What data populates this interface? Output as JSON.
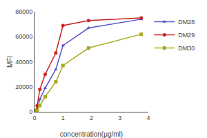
{
  "chart_data": {
    "type": "line",
    "xlabel": "concentration(μg/ml)",
    "ylabel": "MFI",
    "x": [
      0.0,
      0.047,
      0.094,
      0.188,
      0.375,
      0.75,
      1.0,
      1.9,
      3.75
    ],
    "series": [
      {
        "name": "DM28",
        "color": "#5555cc",
        "marker": "triangle",
        "values": [
          0,
          500,
          2000,
          10000,
          19000,
          34000,
          53000,
          67000,
          74000
        ]
      },
      {
        "name": "DM29",
        "color": "#cc2222",
        "marker": "circle",
        "values": [
          0,
          1000,
          5000,
          18000,
          30000,
          47000,
          69000,
          73000,
          75000
        ]
      },
      {
        "name": "DM30",
        "color": "#aaaa22",
        "marker": "square",
        "values": [
          0,
          300,
          1000,
          5000,
          12000,
          24000,
          37000,
          51000,
          62000
        ]
      }
    ],
    "xlim": [
      0,
      4.0
    ],
    "ylim": [
      0,
      80000
    ],
    "xticks": [
      0,
      1,
      2,
      3,
      4
    ],
    "yticks": [
      0,
      20000,
      40000,
      60000,
      80000
    ],
    "grid": false,
    "legend": "upper right"
  }
}
